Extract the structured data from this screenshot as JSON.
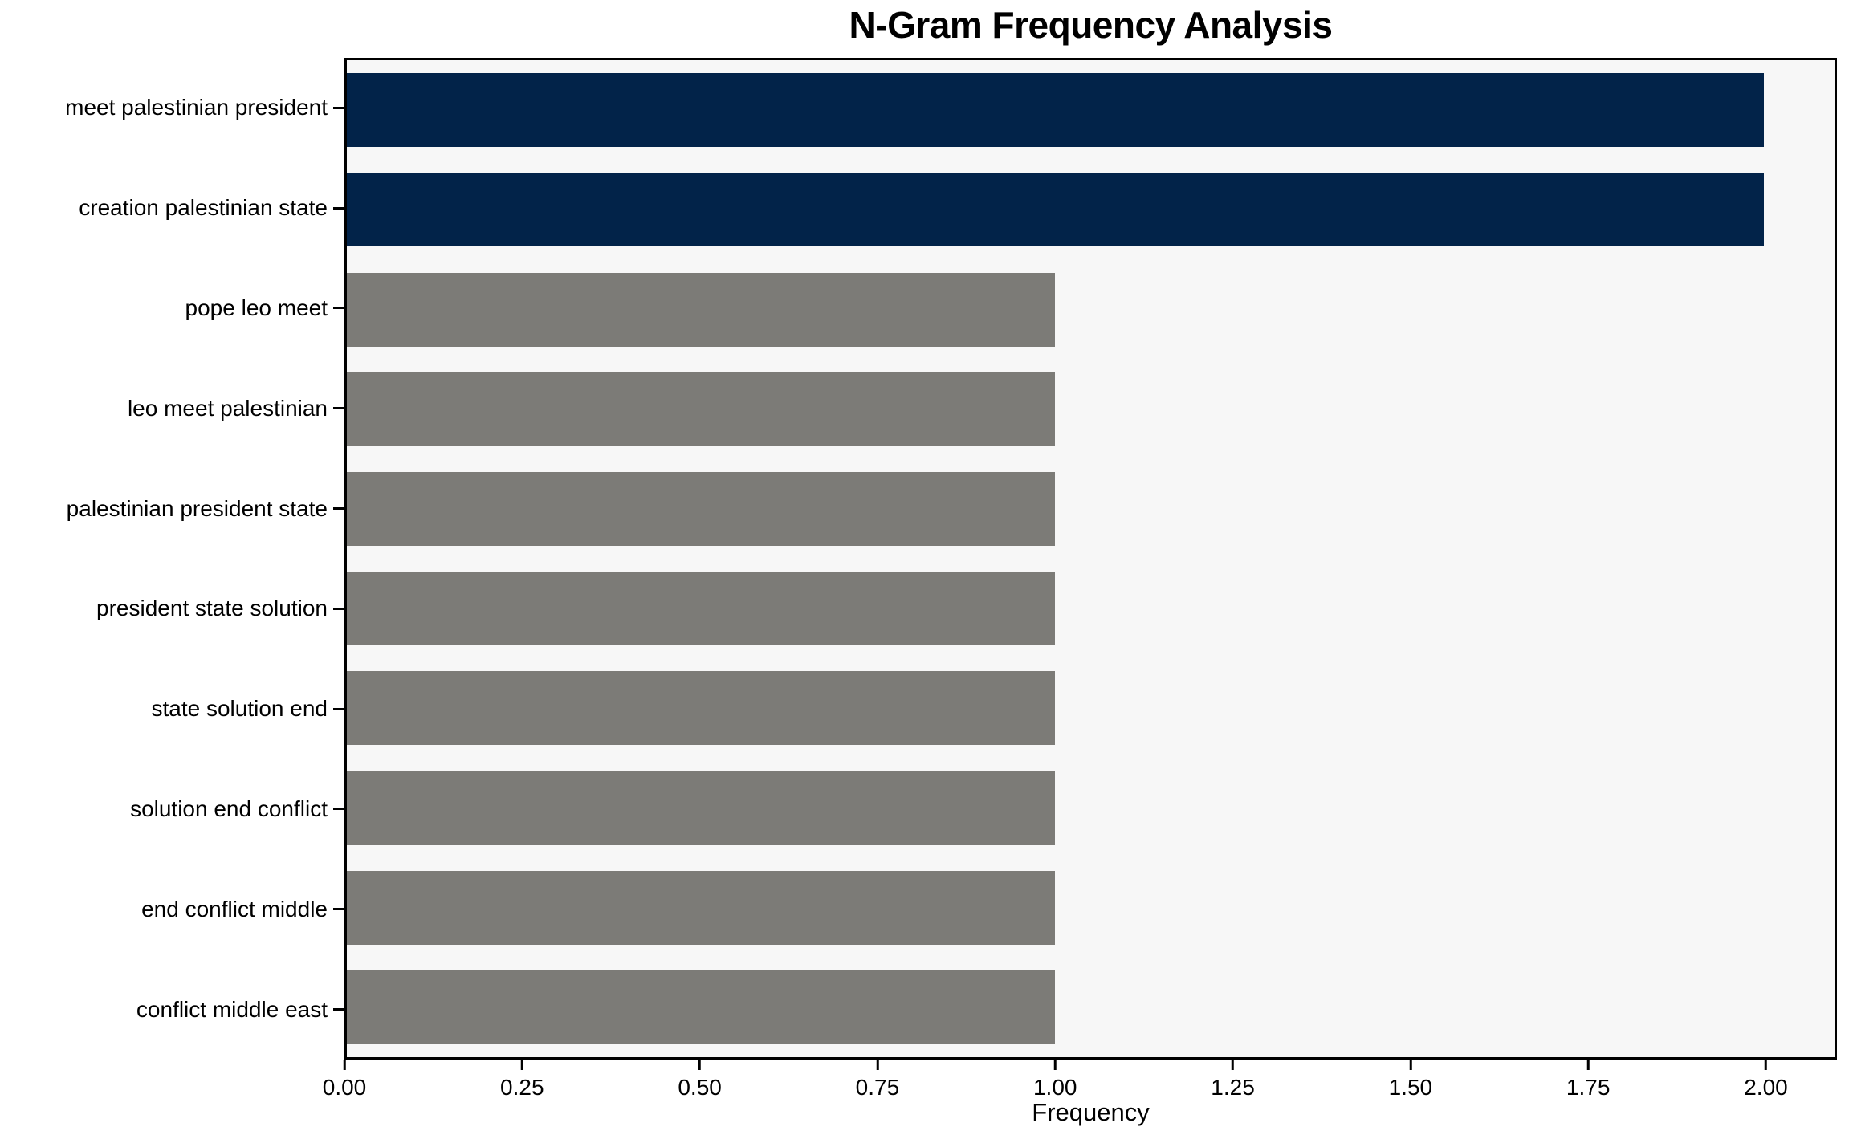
{
  "title": "N-Gram Frequency Analysis",
  "chart_data": {
    "type": "bar",
    "orientation": "horizontal",
    "title": "N-Gram Frequency Analysis",
    "xlabel": "Frequency",
    "ylabel": "",
    "categories": [
      "meet palestinian president",
      "creation palestinian state",
      "pope leo meet",
      "leo meet palestinian",
      "palestinian president state",
      "president state solution",
      "state solution end",
      "solution end conflict",
      "end conflict middle",
      "conflict middle east"
    ],
    "values": [
      2,
      2,
      1,
      1,
      1,
      1,
      1,
      1,
      1,
      1
    ],
    "bar_colors": [
      "#022349",
      "#022349",
      "#7c7b77",
      "#7c7b77",
      "#7c7b77",
      "#7c7b77",
      "#7c7b77",
      "#7c7b77",
      "#7c7b77",
      "#7c7b77"
    ],
    "xlim": [
      0,
      2.1
    ],
    "xticks": [
      0,
      0.25,
      0.5,
      0.75,
      1.0,
      1.25,
      1.5,
      1.75,
      2.0
    ],
    "xtick_labels": [
      "0.00",
      "0.25",
      "0.50",
      "0.75",
      "1.00",
      "1.25",
      "1.50",
      "1.75",
      "2.00"
    ],
    "grid": false,
    "legend": false,
    "colors": {
      "highlight_bar": "#022349",
      "default_bar": "#7c7b77",
      "plot_background": "#f7f7f7",
      "figure_background": "#ffffff",
      "spine": "#000000",
      "text": "#000000"
    }
  }
}
